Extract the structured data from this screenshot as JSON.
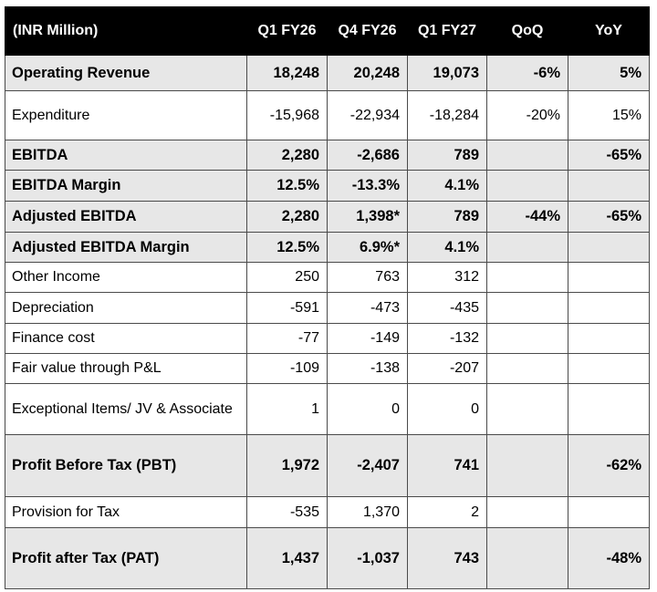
{
  "table": {
    "headers": [
      "(INR Million)",
      "Q1 FY26",
      "Q4 FY26",
      "Q1 FY27",
      "QoQ",
      "YoY"
    ],
    "rows": [
      {
        "cells": [
          "Operating Revenue",
          "18,248",
          "20,248",
          "19,073",
          "-6%",
          "5%"
        ],
        "bold": true,
        "shaded": true
      },
      {
        "cells": [
          "Expenditure",
          "-15,968",
          "-22,934",
          "-18,284",
          "-20%",
          "15%"
        ],
        "bold": false,
        "shaded": false
      },
      {
        "cells": [
          "EBITDA",
          "2,280",
          "-2,686",
          "789",
          "",
          "-65%"
        ],
        "bold": true,
        "shaded": true
      },
      {
        "cells": [
          "EBITDA Margin",
          "12.5%",
          "-13.3%",
          "4.1%",
          "",
          ""
        ],
        "bold": true,
        "shaded": true
      },
      {
        "cells": [
          "Adjusted EBITDA",
          "2,280",
          "1,398*",
          "789",
          "-44%",
          "-65%"
        ],
        "bold": true,
        "shaded": true
      },
      {
        "cells": [
          "Adjusted EBITDA Margin",
          "12.5%",
          "6.9%*",
          "4.1%",
          "",
          ""
        ],
        "bold": true,
        "shaded": true
      },
      {
        "cells": [
          "Other Income",
          "250",
          "763",
          "312",
          "",
          ""
        ],
        "bold": false,
        "shaded": false
      },
      {
        "cells": [
          "Depreciation",
          "-591",
          "-473",
          "-435",
          "",
          ""
        ],
        "bold": false,
        "shaded": false
      },
      {
        "cells": [
          "Finance cost",
          "-77",
          "-149",
          "-132",
          "",
          ""
        ],
        "bold": false,
        "shaded": false
      },
      {
        "cells": [
          "Fair value through P&L",
          "-109",
          "-138",
          "-207",
          "",
          ""
        ],
        "bold": false,
        "shaded": false
      },
      {
        "cells": [
          "Exceptional Items/ JV & Associate",
          "1",
          "0",
          "0",
          "",
          ""
        ],
        "bold": false,
        "shaded": false
      },
      {
        "cells": [
          "Profit Before Tax (PBT)",
          "1,972",
          "-2,407",
          "741",
          "",
          "-62%"
        ],
        "bold": true,
        "shaded": true
      },
      {
        "cells": [
          "Provision for Tax",
          "-535",
          "1,370",
          "2",
          "",
          ""
        ],
        "bold": false,
        "shaded": false
      },
      {
        "cells": [
          "Profit after Tax (PAT)",
          "1,437",
          "-1,037",
          "743",
          "",
          "-48%"
        ],
        "bold": true,
        "shaded": true
      }
    ]
  },
  "colors": {
    "header_bg": "#000000",
    "header_text": "#ffffff",
    "shade_bg": "#e7e7e7",
    "border": "#4a4a4a"
  }
}
